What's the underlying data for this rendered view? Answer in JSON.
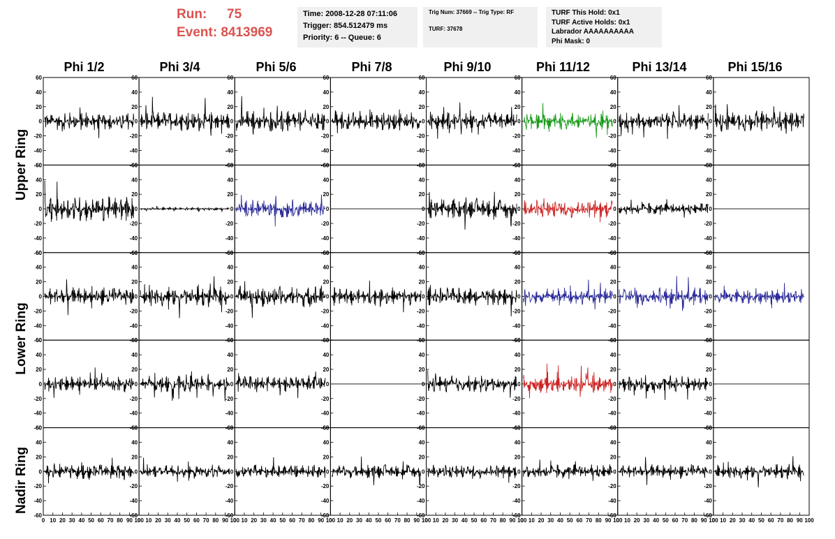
{
  "header": {
    "run_label": "Run:",
    "run_value": "75",
    "event_label": "Event:",
    "event_value": "8413969",
    "time_line": "Time: 2008-12-28 07:11:06",
    "trigger_line": "Trigger: 854.512479 ms",
    "priority_line": "Priority: 6 -- Queue: 6",
    "trig_num_line": "Trig Num: 37669 -- Trig Type: RF",
    "turf_line": "TURF: 37678",
    "turf_hold_line": "TURF This Hold: 0x1",
    "turf_active_line": "TURF Active Holds: 0x1",
    "labrador_line": "Labrador AAAAAAAAAA",
    "phi_mask_line": "Phi Mask: 0"
  },
  "columns": [
    "Phi 1/2",
    "Phi 3/4",
    "Phi 5/6",
    "Phi 7/8",
    "Phi 9/10",
    "Phi 11/12",
    "Phi 13/14",
    "Phi 15/16"
  ],
  "row_labels": [
    "Upper Ring",
    "Lower Ring",
    "Nadir Ring"
  ],
  "y_ticks": [
    60,
    40,
    20,
    0,
    -20,
    -40,
    -60
  ],
  "y_tick_labels": [
    "60",
    "40",
    "20",
    "0",
    "-20",
    "-40",
    "-60"
  ],
  "x_tick_labels": [
    "0",
    "10",
    "20",
    "30",
    "40",
    "50",
    "60",
    "70",
    "80",
    "90",
    "100"
  ],
  "x_range": [
    0,
    100
  ],
  "y_range": [
    -60,
    60
  ],
  "colors": {
    "default": "#000000",
    "green": "#1a9a1a",
    "red": "#cc2222",
    "blue": "#2a2a99",
    "header_red": "#d9534f"
  },
  "waveforms": [
    [
      "black",
      "black",
      "black",
      "black",
      "black",
      "green",
      "black",
      "black"
    ],
    [
      "black",
      "black",
      "blue",
      "flat",
      "black",
      "red",
      "black",
      "flat"
    ],
    [
      "black",
      "black",
      "black",
      "black",
      "black",
      "blue",
      "blue",
      "blue"
    ],
    [
      "black",
      "black",
      "black",
      "flat",
      "black",
      "red",
      "black",
      "flat"
    ],
    [
      "black",
      "black",
      "black",
      "black",
      "black",
      "black",
      "black",
      "black"
    ]
  ],
  "amplitudes": [
    [
      13,
      15,
      16,
      14,
      13,
      13,
      13,
      15
    ],
    [
      18,
      2,
      13,
      0,
      15,
      13,
      9,
      0
    ],
    [
      13,
      14,
      16,
      13,
      13,
      11,
      13,
      11
    ],
    [
      12,
      12,
      12,
      0,
      12,
      13,
      12,
      0
    ],
    [
      12,
      9,
      10,
      10,
      10,
      11,
      10,
      10
    ]
  ]
}
